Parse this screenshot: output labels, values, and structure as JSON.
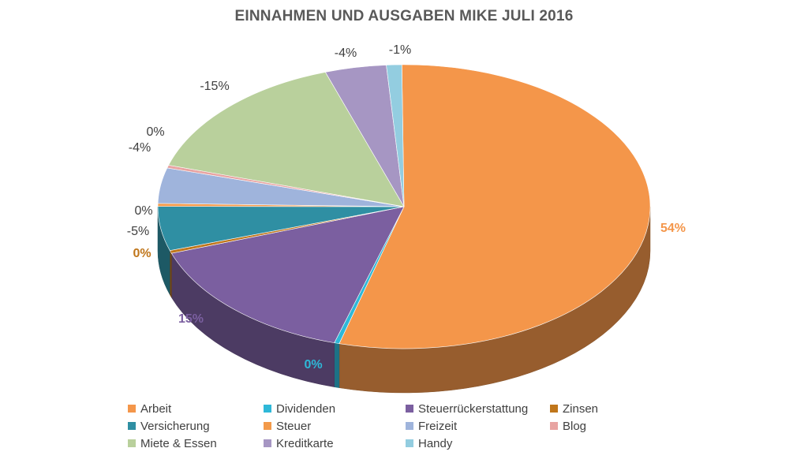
{
  "chart_data": {
    "type": "pie",
    "title": "EINNAHMEN UND AUSGABEN MIKE JULI 2016",
    "slices": [
      {
        "name": "Arbeit",
        "value": 54,
        "label": "",
        "color": "#f4964a"
      },
      {
        "name": "Dividenden",
        "value": 0,
        "label": "0%",
        "color": "#2eb8d8"
      },
      {
        "name": "Steuerrückerstattung",
        "value": 15,
        "label": "15%",
        "color": "#7b5fa0"
      },
      {
        "name": "Zinsen",
        "value": 0,
        "label": "0%",
        "color": "#c0761b"
      },
      {
        "name": "Versicherung",
        "value": -5,
        "label": "-5%",
        "color": "#2f8fa3"
      },
      {
        "name": "Steuer",
        "value": 0,
        "label": "0%",
        "color": "#f39a4a"
      },
      {
        "name": "Freizeit",
        "value": -4,
        "label": "-4%",
        "color": "#9fb4dc"
      },
      {
        "name": "Blog",
        "value": 0,
        "label": "0%",
        "color": "#e8a4a2"
      },
      {
        "name": "Miete & Essen",
        "value": -15,
        "label": "-15%",
        "color": "#b9d09c"
      },
      {
        "name": "Kreditkarte",
        "value": -4,
        "label": "-4%",
        "color": "#a696c3"
      },
      {
        "name": "Handy",
        "value": -1,
        "label": "-1%",
        "color": "#93cde0"
      }
    ],
    "outside_labels": [
      {
        "text": "54%",
        "color": "#f4964a",
        "bold": true
      },
      {
        "text": "0%",
        "color": "#2eb8d8",
        "bold": true
      },
      {
        "text": "15%",
        "color": "#7b5fa0",
        "bold": true
      },
      {
        "text": "0%",
        "color": "#c0761b",
        "bold": true
      },
      {
        "text": "0%",
        "color": "#404040",
        "bold": false
      },
      {
        "text": "-5%",
        "color": "#404040",
        "bold": false
      },
      {
        "text": "0%",
        "color": "#404040",
        "bold": false
      },
      {
        "text": "-4%",
        "color": "#404040",
        "bold": false
      },
      {
        "text": "-15%",
        "color": "#404040",
        "bold": false
      },
      {
        "text": "-4%",
        "color": "#404040",
        "bold": false
      },
      {
        "text": "-1%",
        "color": "#404040",
        "bold": false
      }
    ],
    "legend": [
      "Arbeit",
      "Dividenden",
      "Steuerrückerstattung",
      "Zinsen",
      "Versicherung",
      "Steuer",
      "Freizeit",
      "Blog",
      "Miete & Essen",
      "Kreditkarte",
      "Handy"
    ],
    "legend_placement": "bottom"
  }
}
